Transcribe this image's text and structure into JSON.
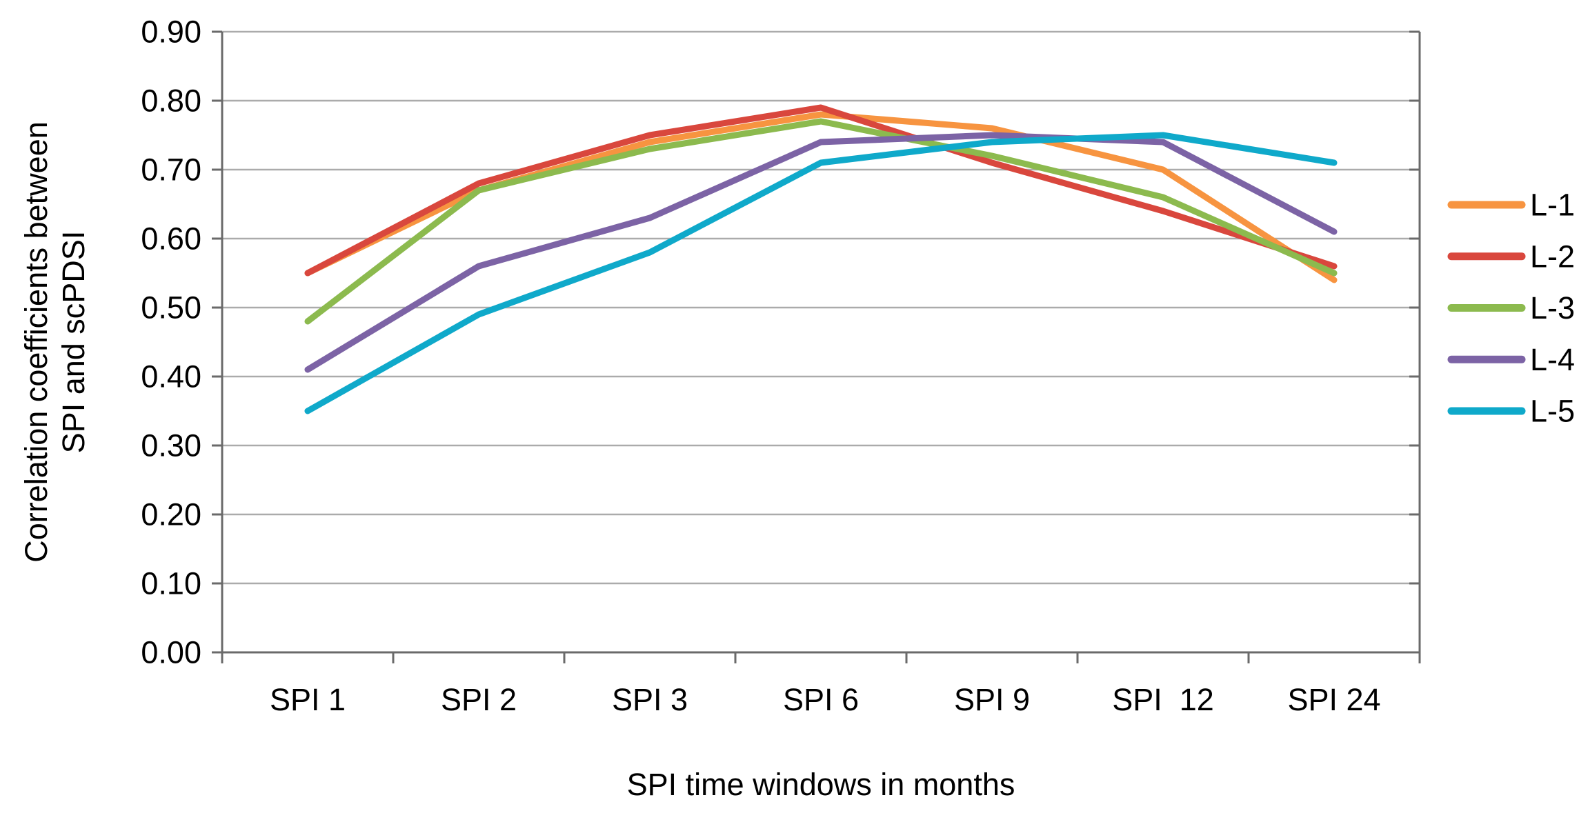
{
  "chart_data": {
    "type": "line",
    "title": "",
    "xlabel": "SPI time windows in months",
    "ylabel": "Correlation coefficients between SPI and scPDSI",
    "ylabel_lines": [
      "Correlation coefficients between",
      "SPI and scPDSI"
    ],
    "categories": [
      "SPI 1",
      "SPI 2",
      "SPI 3",
      "SPI 6",
      "SPI 9",
      "SPI  12",
      "SPI 24"
    ],
    "series": [
      {
        "name": "L-1",
        "color": "#F79440",
        "values": [
          0.55,
          0.67,
          0.74,
          0.78,
          0.76,
          0.7,
          0.54
        ]
      },
      {
        "name": "L-2",
        "color": "#D9473D",
        "values": [
          0.55,
          0.68,
          0.75,
          0.79,
          0.71,
          0.64,
          0.56
        ]
      },
      {
        "name": "L-3",
        "color": "#8CBA4E",
        "values": [
          0.48,
          0.67,
          0.73,
          0.77,
          0.72,
          0.66,
          0.55
        ]
      },
      {
        "name": "L-4",
        "color": "#7C63A5",
        "values": [
          0.41,
          0.56,
          0.63,
          0.74,
          0.75,
          0.74,
          0.61
        ]
      },
      {
        "name": "L-5",
        "color": "#0FA9CA",
        "values": [
          0.35,
          0.49,
          0.58,
          0.71,
          0.74,
          0.75,
          0.71
        ]
      }
    ],
    "ylim": [
      0.0,
      0.9
    ],
    "ytick_step": 0.1,
    "ytick_decimals": 2,
    "grid": "horizontal-only",
    "legend_position": "right",
    "colors": {
      "grid_line": "#ABABAB",
      "axis_line": "#6A6A6A",
      "text": "#000000",
      "background": "#FFFFFF"
    }
  }
}
